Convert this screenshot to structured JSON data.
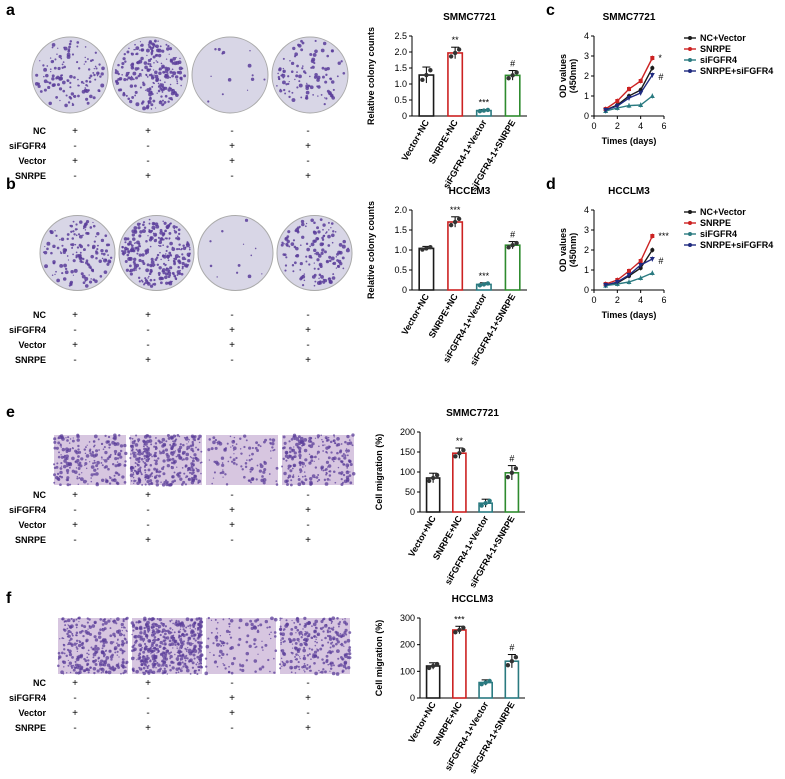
{
  "panels": {
    "a": {
      "label": "a",
      "title": "SMMC7721"
    },
    "b": {
      "label": "b",
      "title": "HCCLM3"
    },
    "c": {
      "label": "c",
      "title": "SMMC7721"
    },
    "d": {
      "label": "d",
      "title": "HCCLM3"
    },
    "e": {
      "label": "e",
      "title": "SMMC7721"
    },
    "f": {
      "label": "f",
      "title": "HCCLM3"
    }
  },
  "condition_table": {
    "rows": [
      "NC",
      "siFGFR4",
      "Vector",
      "SNRPE"
    ],
    "columns": [
      [
        "+",
        "-",
        "+",
        "-"
      ],
      [
        "+",
        "-",
        "-",
        "+"
      ],
      [
        "-",
        "+",
        "+",
        "-"
      ],
      [
        "-",
        "+",
        "-",
        "+"
      ]
    ]
  },
  "colors": {
    "black": "#1a1a1a",
    "red": "#cc2222",
    "teal": "#2a7a80",
    "green": "#2e8b2e",
    "navy": "#1f2a80",
    "plate": "#d8d6e6",
    "stain": "#5b3d9a"
  },
  "chart_data": [
    {
      "id": "a-bar",
      "type": "bar",
      "title": "SMMC7721",
      "ylabel": "Relative colony counts",
      "ylim": [
        0,
        2.5
      ],
      "yticks": [
        "0",
        "0.5",
        "1.0",
        "1.5",
        "2.0",
        "2.5"
      ],
      "categories": [
        "Vector+NC",
        "SNRPE+NC",
        "siFGFR4-1+Vector",
        "siFGFR4-1+SNRPE"
      ],
      "values": [
        1.28,
        1.97,
        0.17,
        1.27
      ],
      "errors": [
        0.25,
        0.18,
        0.03,
        0.15
      ],
      "annotations": [
        "",
        "**",
        "***",
        "#"
      ]
    },
    {
      "id": "b-bar",
      "type": "bar",
      "title": "HCCLM3",
      "ylabel": "Relative colony counts",
      "ylim": [
        0,
        2.0
      ],
      "yticks": [
        "0",
        "0.5",
        "1.0",
        "1.5",
        "2.0"
      ],
      "categories": [
        "Vector+NC",
        "SNRPE+NC",
        "siFGFR4-1+Vector",
        "siFGFR4-1+SNRPE"
      ],
      "values": [
        1.04,
        1.7,
        0.14,
        1.12
      ],
      "errors": [
        0.05,
        0.13,
        0.04,
        0.09
      ],
      "annotations": [
        "",
        "***",
        "***",
        "#"
      ]
    },
    {
      "id": "c-line",
      "type": "line",
      "title": "SMMC7721",
      "ylabel": "OD values\n(450nm)",
      "xlabel": "Times (days)",
      "xlim": [
        0,
        6
      ],
      "ylim": [
        0,
        4
      ],
      "xticks": [
        "0",
        "2",
        "4",
        "6"
      ],
      "yticks": [
        "0",
        "1",
        "2",
        "3",
        "4"
      ],
      "x": [
        1,
        2,
        3,
        4,
        5
      ],
      "series": [
        {
          "name": "NC+Vector",
          "marker": "circle",
          "values": [
            0.3,
            0.55,
            1.0,
            1.3,
            2.4
          ]
        },
        {
          "name": "SNRPE",
          "marker": "square",
          "values": [
            0.35,
            0.75,
            1.35,
            1.75,
            2.9
          ]
        },
        {
          "name": "siFGFR4",
          "marker": "triangle",
          "values": [
            0.25,
            0.4,
            0.52,
            0.55,
            1.0
          ]
        },
        {
          "name": "SNRPE+siFGFR4",
          "marker": "tri-down",
          "values": [
            0.3,
            0.5,
            0.9,
            1.15,
            2.05
          ]
        }
      ],
      "annotations": [
        "*",
        "#"
      ]
    },
    {
      "id": "d-line",
      "type": "line",
      "title": "HCCLM3",
      "ylabel": "OD values\n(450nm)",
      "xlabel": "Times (days)",
      "xlim": [
        0,
        6
      ],
      "ylim": [
        0,
        4
      ],
      "xticks": [
        "0",
        "2",
        "4",
        "6"
      ],
      "yticks": [
        "0",
        "1",
        "2",
        "3",
        "4"
      ],
      "x": [
        1,
        2,
        3,
        4,
        5
      ],
      "series": [
        {
          "name": "NC+Vector",
          "marker": "circle",
          "values": [
            0.25,
            0.35,
            0.7,
            1.1,
            2.0
          ]
        },
        {
          "name": "SNRPE",
          "marker": "square",
          "values": [
            0.3,
            0.5,
            0.95,
            1.45,
            2.7
          ]
        },
        {
          "name": "siFGFR4",
          "marker": "triangle",
          "values": [
            0.22,
            0.3,
            0.4,
            0.6,
            0.85
          ]
        },
        {
          "name": "SNRPE+siFGFR4",
          "marker": "tri-down",
          "values": [
            0.25,
            0.4,
            0.75,
            1.25,
            1.55
          ]
        }
      ],
      "annotations": [
        "***",
        "#"
      ]
    },
    {
      "id": "e-bar",
      "type": "bar",
      "title": "SMMC7721",
      "ylabel": "Cell migration (%)",
      "ylim": [
        0,
        200
      ],
      "yticks": [
        "0",
        "50",
        "100",
        "150",
        "200"
      ],
      "categories": [
        "Vector+NC",
        "SNRPE+NC",
        "siFGFR4-1+Vector",
        "siFGFR4-1+SNRPE"
      ],
      "values": [
        85,
        147,
        22,
        98
      ],
      "errors": [
        12,
        13,
        10,
        18
      ],
      "annotations": [
        "",
        "**",
        "",
        "#"
      ]
    },
    {
      "id": "f-bar",
      "type": "bar",
      "title": "HCCLM3",
      "ylabel": "Cell migration (%)",
      "ylim": [
        0,
        300
      ],
      "yticks": [
        "0",
        "100",
        "200",
        "300"
      ],
      "categories": [
        "Vector+NC",
        "SNRPE+NC",
        "siFGFR4-1+Vector",
        "siFGFR4-1+SNRPE"
      ],
      "values": [
        120,
        255,
        58,
        138
      ],
      "errors": [
        12,
        14,
        10,
        25
      ],
      "annotations": [
        "",
        "***",
        "",
        "#"
      ]
    }
  ]
}
